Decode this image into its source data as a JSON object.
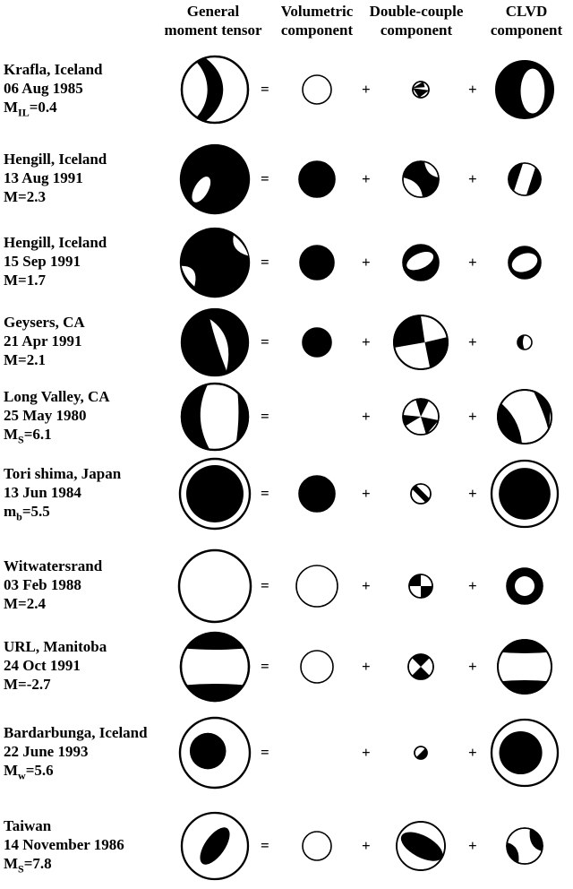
{
  "headers": [
    {
      "line1": "General",
      "line2": "moment tensor"
    },
    {
      "line1": "Volumetric",
      "line2": "component"
    },
    {
      "line1": "Double-couple",
      "line2": "component"
    },
    {
      "line1": "CLVD",
      "line2": "component"
    }
  ],
  "equals_sign": "=",
  "plus_sign": "+",
  "events": [
    {
      "name": "Krafla, Iceland",
      "date": "06 Aug 1985",
      "mag_prefix": "M",
      "mag_sub": "IL",
      "mag_value": "=0.4"
    },
    {
      "name": "Hengill, Iceland",
      "date": "13 Aug 1991",
      "mag_prefix": "M",
      "mag_sub": "",
      "mag_value": "=2.3"
    },
    {
      "name": "Hengill, Iceland",
      "date": "15 Sep 1991",
      "mag_prefix": "M",
      "mag_sub": "",
      "mag_value": "=1.7"
    },
    {
      "name": "Geysers, CA",
      "date": "21 Apr 1991",
      "mag_prefix": "M",
      "mag_sub": "",
      "mag_value": "=2.1"
    },
    {
      "name": "Long Valley, CA",
      "date": "25 May 1980",
      "mag_prefix": "M",
      "mag_sub": "S",
      "mag_value": "=6.1"
    },
    {
      "name": "Tori shima, Japan",
      "date": "13 Jun 1984",
      "mag_prefix": "m",
      "mag_sub": "b",
      "mag_value": "=5.5"
    },
    {
      "name": "Witwatersrand",
      "date": "03 Feb 1988",
      "mag_prefix": "M",
      "mag_sub": "",
      "mag_value": "=2.4"
    },
    {
      "name": "URL, Manitoba",
      "date": "24 Oct 1991",
      "mag_prefix": "M",
      "mag_sub": "",
      "mag_value": "=-2.7"
    },
    {
      "name": "Bardarbunga, Iceland",
      "date": "22 June 1993",
      "mag_prefix": "M",
      "mag_sub": "w",
      "mag_value": "=5.6"
    },
    {
      "name": "Taiwan",
      "date": "14 November 1986",
      "mag_prefix": "M",
      "mag_sub": "S",
      "mag_value": "=7.8"
    }
  ],
  "colors": {
    "ink": "#000000",
    "paper": "#ffffff"
  }
}
